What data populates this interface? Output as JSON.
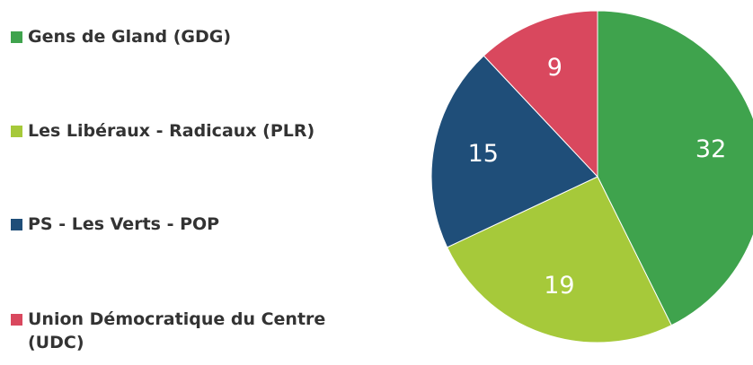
{
  "chart_data": {
    "type": "pie",
    "categories": [
      "Gens de Gland (GDG)",
      "Les Libéraux - Radicaux (PLR)",
      "PS - Les Verts - POP",
      "Union Démocratique du Centre (UDC)"
    ],
    "values": [
      32,
      19,
      15,
      9
    ],
    "colors": [
      "#3fa34d",
      "#a6c93a",
      "#1f4e79",
      "#d9485e"
    ]
  }
}
